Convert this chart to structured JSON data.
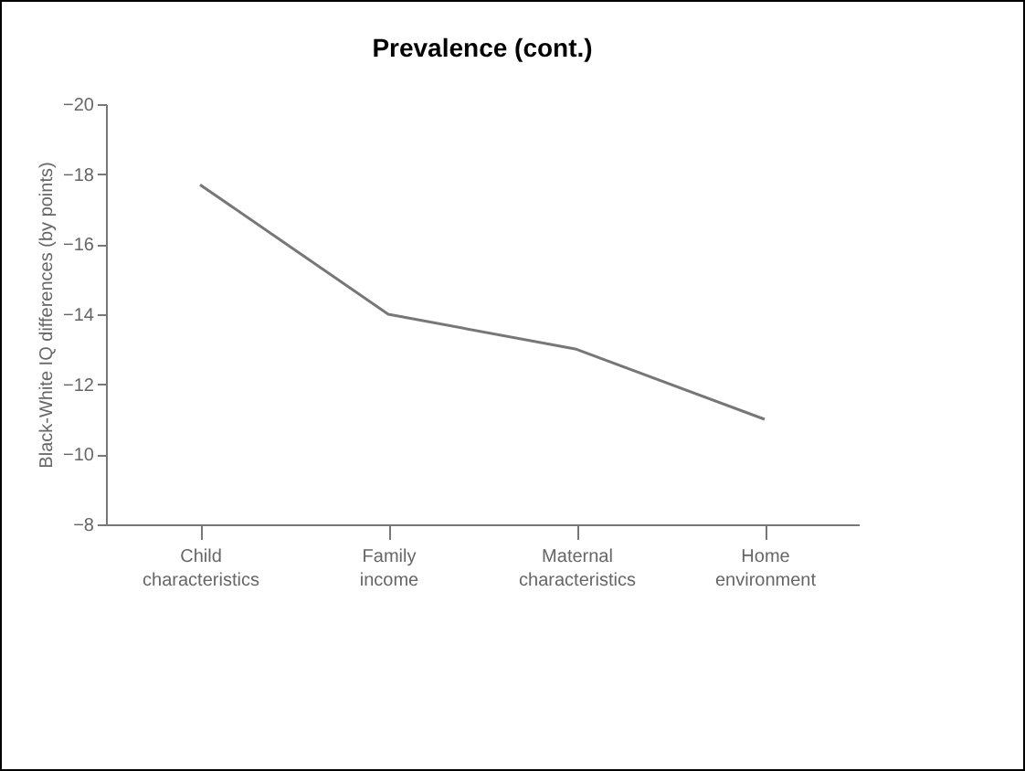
{
  "chart_data": {
    "type": "line",
    "title": "Prevalence (cont.)",
    "ylabel": "Black-White IQ differences (by points)",
    "categories": [
      "Child characteristics",
      "Family income",
      "Maternal characteristics",
      "Home environment"
    ],
    "series": [
      {
        "color": "#777777",
        "values": [
          -17.7,
          -14,
          -13,
          -11
        ]
      }
    ],
    "ylim": [
      -8,
      -20
    ],
    "yticks": [
      -20,
      -18,
      -16,
      -14,
      -12,
      -10,
      -8
    ],
    "grid": false,
    "legend": false,
    "marker": "none",
    "line_style": "solid"
  }
}
